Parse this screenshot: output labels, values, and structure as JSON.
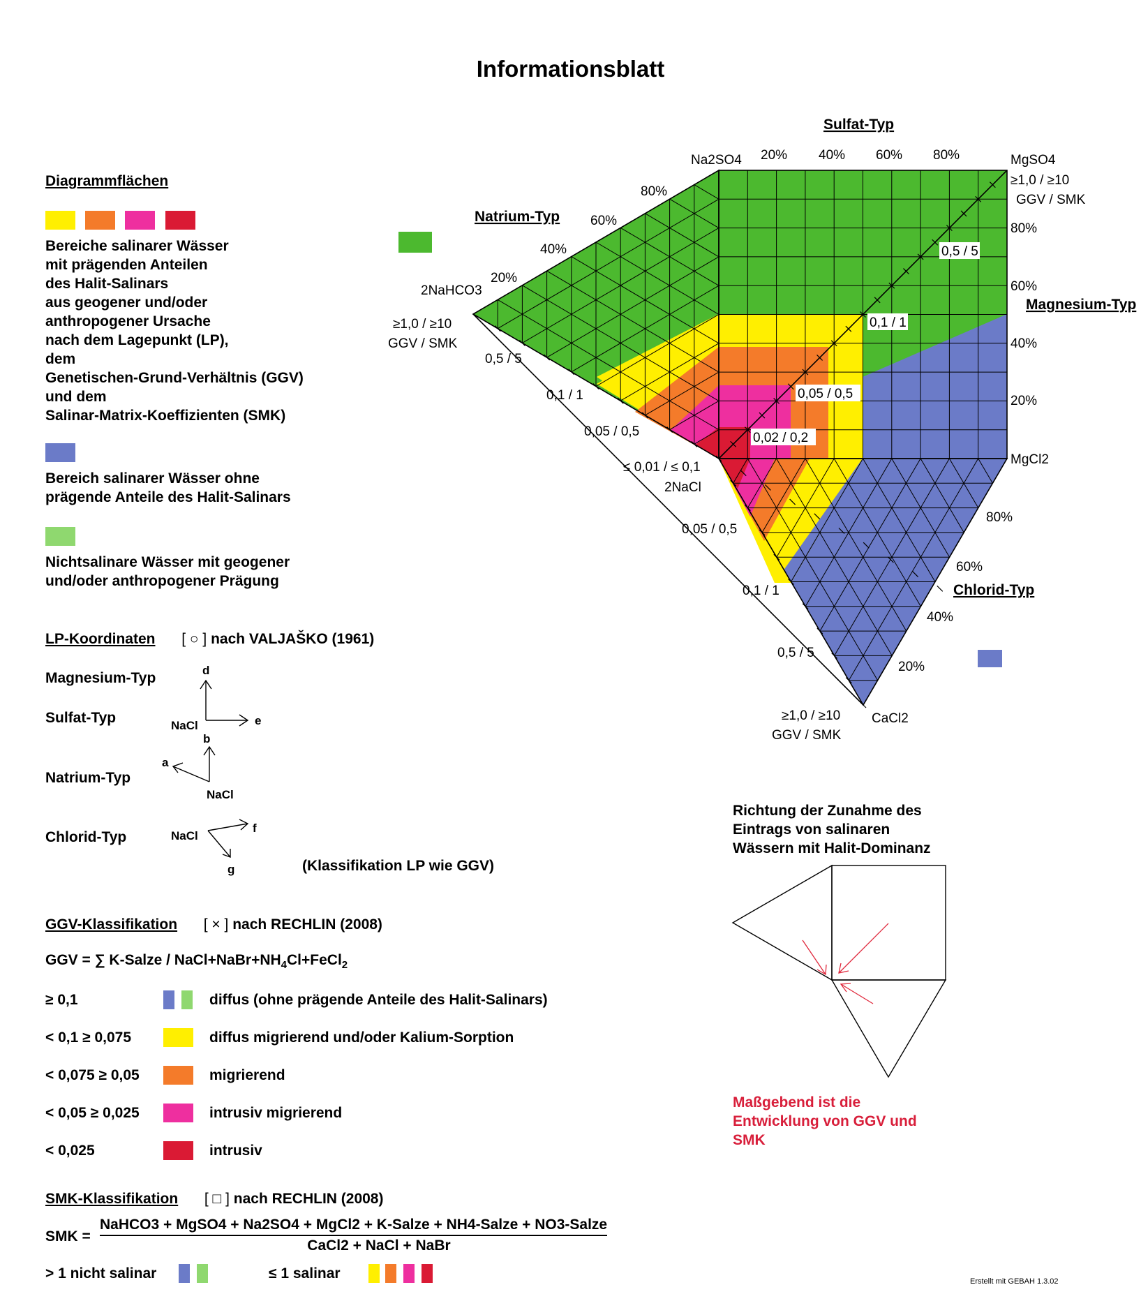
{
  "title": "Informationsblatt",
  "colors": {
    "yellow": "#ffef00",
    "orange": "#f47b2a",
    "magenta": "#ee2f9f",
    "red": "#da1a34",
    "blue": "#6b7bc8",
    "lightgreen": "#8fd86f",
    "green": "#4cb92f"
  },
  "legend": {
    "heading": "Diagrammflächen",
    "salinar_text": [
      "Bereiche salinarer Wässer",
      "mit prägenden Anteilen",
      "des Halit-Salinars",
      "aus geogener und/oder",
      "anthropogener Ursache",
      "nach dem Lagepunkt (LP),",
      "dem",
      "Genetischen-Grund-Verhältnis (GGV)",
      "und dem",
      "Salinar-Matrix-Koeffizienten (SMK)"
    ],
    "blue_text": [
      "Bereich salinarer Wässer ohne",
      "prägende Anteile des Halit-Salinars"
    ],
    "green_text": [
      "Nichtsalinare Wässer mit geogener",
      "und/oder anthropogener Prägung"
    ]
  },
  "lp": {
    "heading": "LP-Koordinaten",
    "symbol": "[ ○ ]",
    "source": "nach VALJAŠKO (1961)",
    "types": [
      "Magnesium-Typ",
      "Sulfat-Typ",
      "Natrium-Typ",
      "Chlorid-Typ"
    ],
    "nacl": "NaCl",
    "axes": {
      "d": "d",
      "e": "e",
      "a": "a",
      "b": "b",
      "f": "f",
      "g": "g"
    },
    "note": "(Klassifikation LP wie GGV)"
  },
  "ggv": {
    "heading": "GGV-Klassifikation",
    "symbol": "[ × ]",
    "source": "nach RECHLIN (2008)",
    "formula_pre": "GGV = ∑ K-Salze / NaCl+NaBr+NH",
    "formula_sub1": "4",
    "formula_mid": "Cl+FeCl",
    "formula_sub2": "2",
    "rows": [
      {
        "range": "≥ 0,1",
        "text": "diffus (ohne prägende Anteile des Halit-Salinars)"
      },
      {
        "range": "< 0,1 ≥ 0,075",
        "text": "diffus migrierend und/oder Kalium-Sorption"
      },
      {
        "range": "< 0,075 ≥ 0,05",
        "text": "migrierend"
      },
      {
        "range": "< 0,05 ≥ 0,025",
        "text": "intrusiv migrierend"
      },
      {
        "range": "< 0,025",
        "text": "intrusiv"
      }
    ]
  },
  "smk": {
    "heading": "SMK-Klassifikation",
    "symbol": "[ □ ]",
    "source": "nach RECHLIN (2008)",
    "lhs": "SMK =",
    "numerator": "NaHCO3 + MgSO4 + Na2SO4 + MgCl2 + K-Salze + NH4-Salze + NO3-Salze",
    "denominator": "CaCl2 + NaCl + NaBr",
    "nonsalinar": "> 1 nicht salinar",
    "salinar": "≤ 1 salinar"
  },
  "diagram": {
    "sulfat_typ": "Sulfat-Typ",
    "natrium_typ": "Natrium-Typ",
    "magnesium_typ": "Magnesium-Typ",
    "chlorid_typ": "Chlorid-Typ",
    "na2so4": "Na2SO4",
    "mgso4": "MgSO4",
    "nahco3": "2NaHCO3",
    "mgcl2": "MgCl2",
    "nacl": "2NaCl",
    "cacl2": "CaCl2",
    "top_pct": [
      "20%",
      "40%",
      "60%",
      "80%"
    ],
    "right_pct": [
      "80%",
      "60%",
      "40%",
      "20%"
    ],
    "left_pct": [
      "80%",
      "60%",
      "40%",
      "20%"
    ],
    "bottom_pct": [
      "80%",
      "60%",
      "40%",
      "20%"
    ],
    "ggv_smk_top": "≥1,0 / ≥10",
    "ggv_smk_label": "GGV / SMK",
    "diag_labels": [
      "0,5 / 5",
      "0,1 / 1",
      "0,05 / 0,5",
      "0,02 / 0,2"
    ],
    "left_scale": [
      "0,5 / 5",
      "0,1 / 1",
      "0,05 / 0,5",
      "≤ 0,01 / ≤ 0,1"
    ],
    "bottom_scale": [
      "0,05 / 0,5",
      "0,1 / 1",
      "0,5 / 5"
    ]
  },
  "direction": {
    "text": [
      "Richtung der Zunahme des",
      "Eintrags von salinaren",
      "Wässern mit Halit-Dominanz"
    ],
    "note": [
      "Maßgebend ist die",
      "Entwicklung von GGV und",
      "SMK"
    ]
  },
  "footer": "Erstellt mit GEBAH 1.3.02"
}
